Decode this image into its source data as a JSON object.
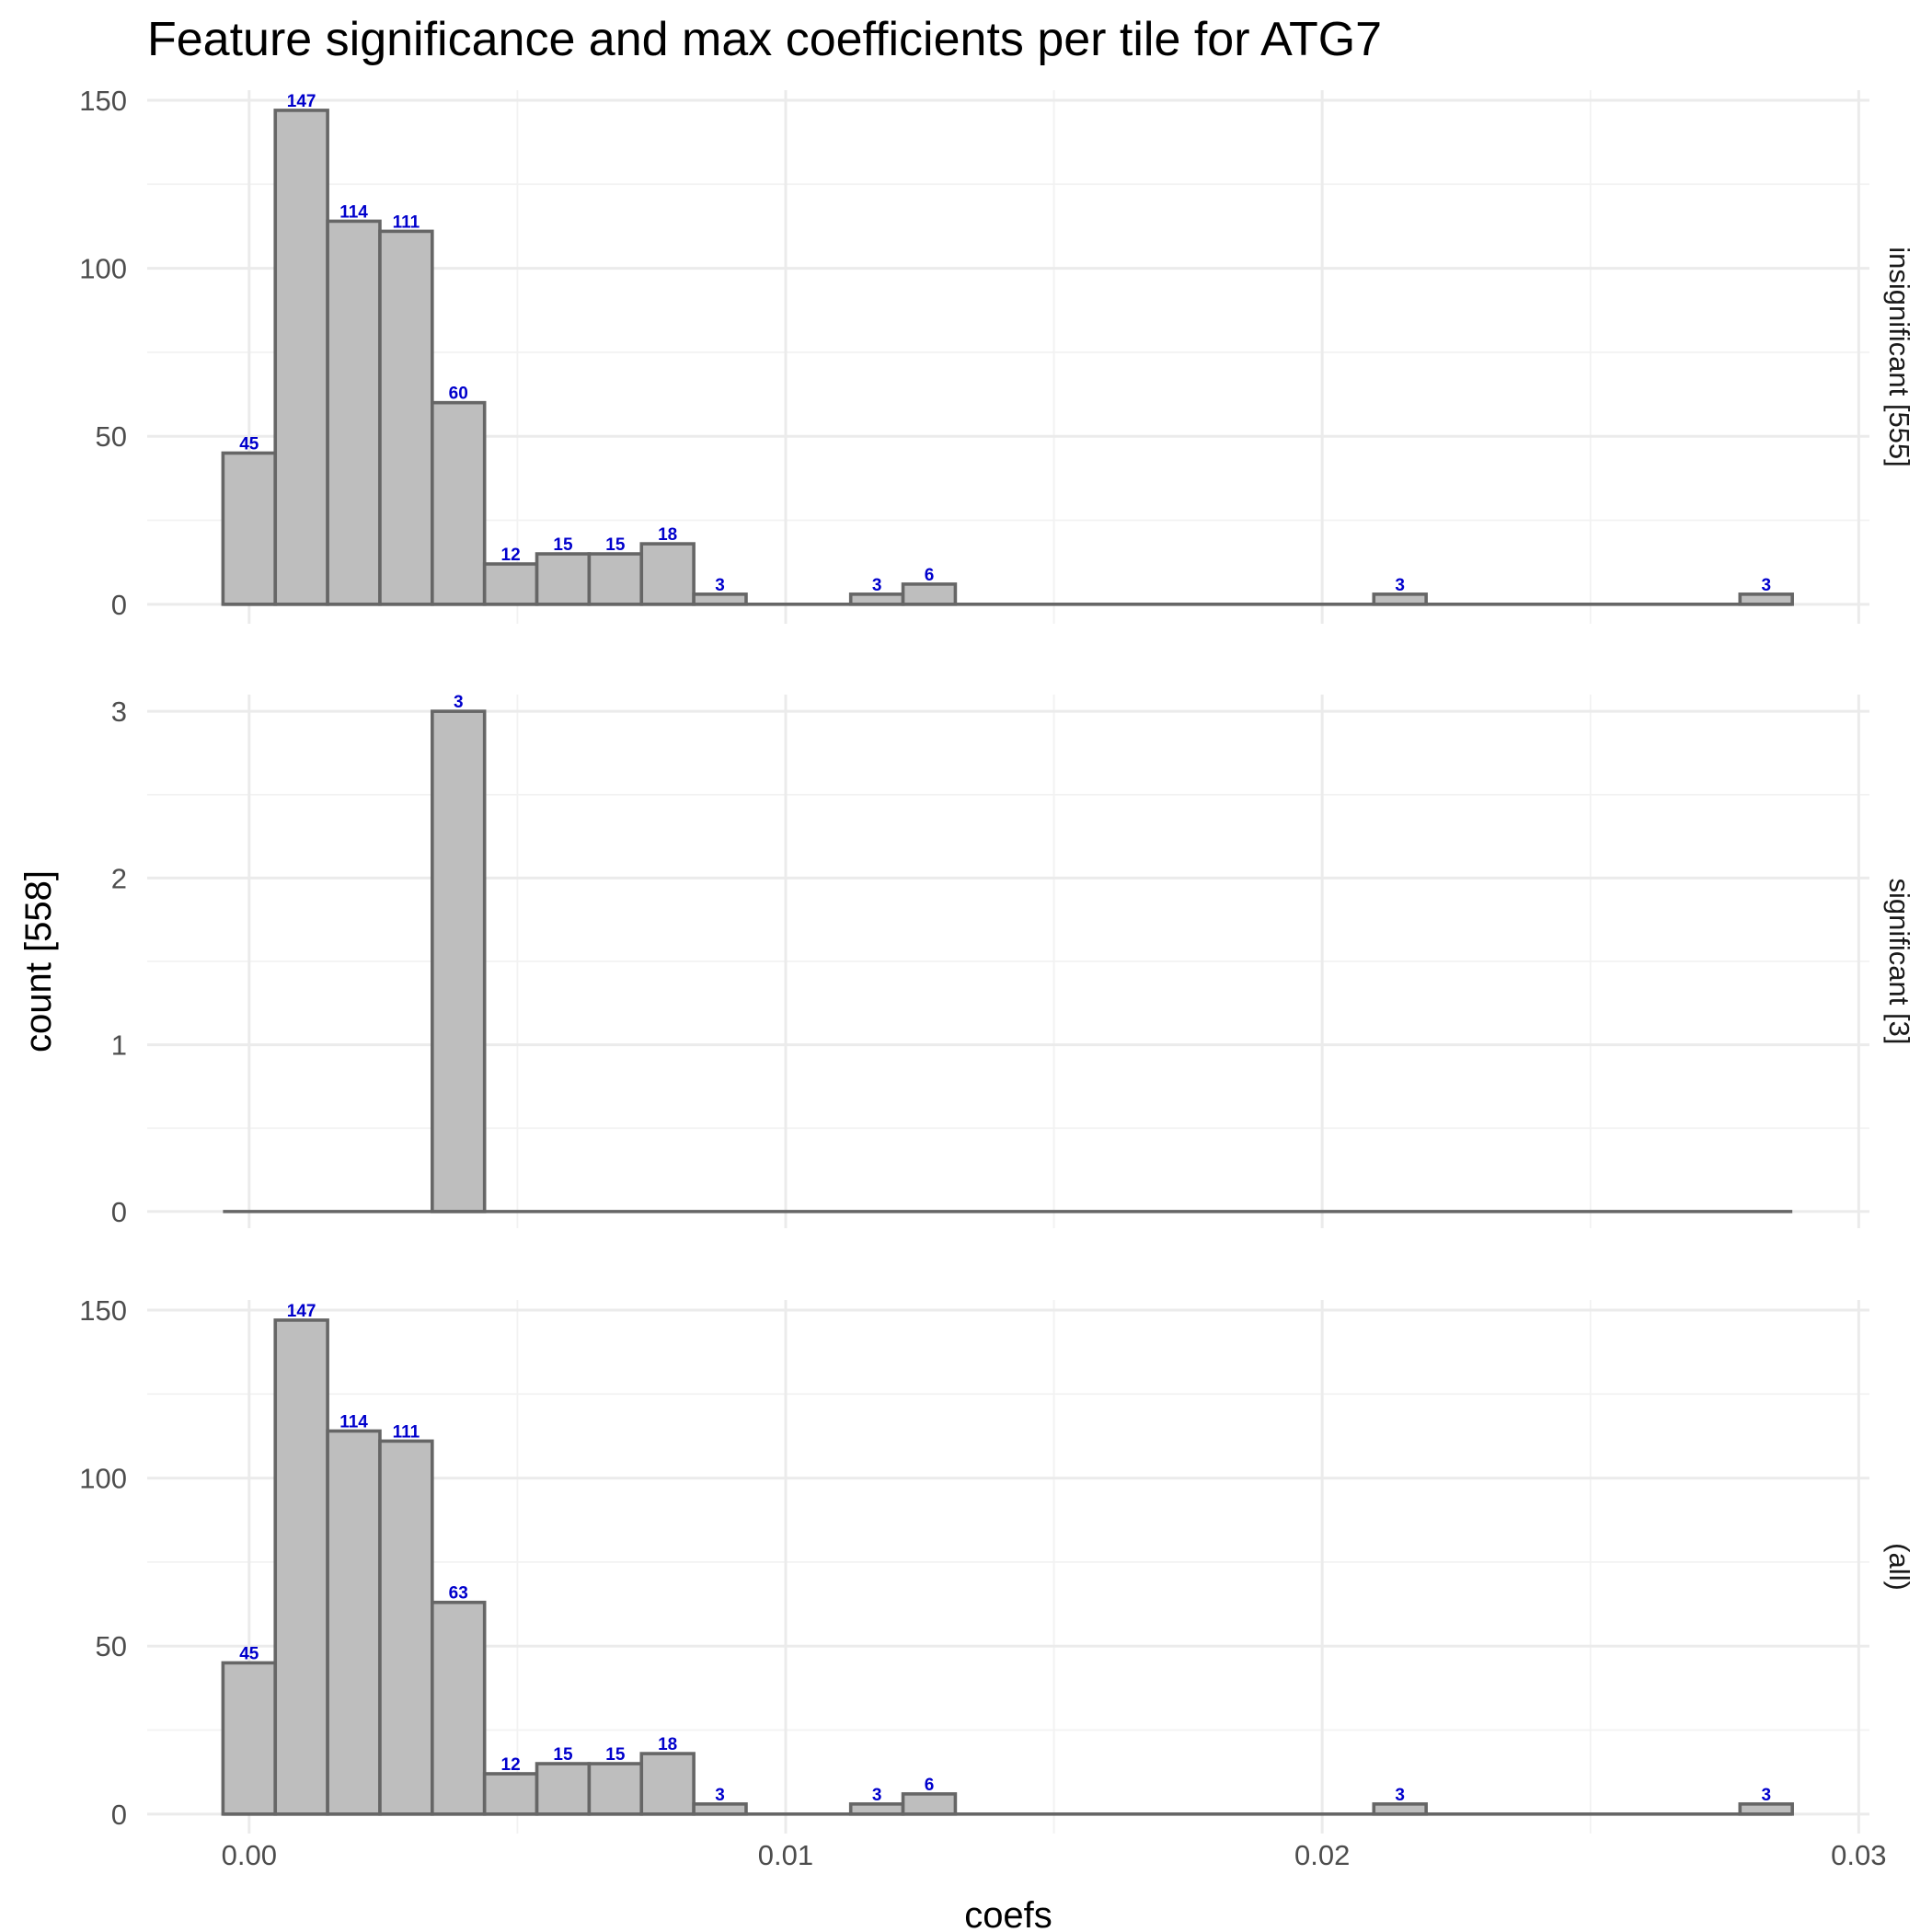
{
  "chart_data": {
    "type": "bar",
    "title": "Feature significance and max coefficients per tile for ATG7",
    "xlabel": "coefs",
    "ylabel": "count [558]",
    "xlim": [
      -0.0019,
      0.0302
    ],
    "x_ticks": [
      {
        "value": 0.0,
        "label": "0.00"
      },
      {
        "value": 0.01,
        "label": "0.01"
      },
      {
        "value": 0.02,
        "label": "0.02"
      },
      {
        "value": 0.03,
        "label": "0.03"
      }
    ],
    "bin_width": 0.000975,
    "bin_centers": [
      0.0,
      0.000975,
      0.00195,
      0.002925,
      0.0039,
      0.004875,
      0.00585,
      0.006825,
      0.0078,
      0.008775,
      0.00975,
      0.010725,
      0.0117,
      0.012675,
      0.01365,
      0.014625,
      0.0156,
      0.016575,
      0.01755,
      0.018525,
      0.0195,
      0.020475,
      0.02145,
      0.022425,
      0.0234,
      0.024375,
      0.02535,
      0.026325,
      0.0273,
      0.028275
    ],
    "panels": [
      {
        "strip_label": "insignificant [555]",
        "ylim": [
          -5.8,
          153
        ],
        "y_ticks": [
          0,
          50,
          100,
          150
        ],
        "y_ticks_minor": [
          25,
          75,
          125
        ],
        "counts": [
          45,
          147,
          114,
          111,
          60,
          12,
          15,
          15,
          18,
          3,
          0,
          0,
          3,
          6,
          0,
          0,
          0,
          0,
          0,
          0,
          0,
          0,
          3,
          0,
          0,
          0,
          0,
          0,
          0,
          3
        ]
      },
      {
        "strip_label": "significant [3]",
        "ylim": [
          -0.1,
          3.1
        ],
        "y_ticks": [
          0,
          1,
          2,
          3
        ],
        "y_ticks_minor": [
          0.5,
          1.5,
          2.5
        ],
        "counts": [
          0,
          0,
          0,
          0,
          3,
          0,
          0,
          0,
          0,
          0,
          0,
          0,
          0,
          0,
          0,
          0,
          0,
          0,
          0,
          0,
          0,
          0,
          0,
          0,
          0,
          0,
          0,
          0,
          0,
          0
        ]
      },
      {
        "strip_label": "(all)",
        "ylim": [
          -5.8,
          153
        ],
        "y_ticks": [
          0,
          50,
          100,
          150
        ],
        "y_ticks_minor": [
          25,
          75,
          125
        ],
        "counts": [
          45,
          147,
          114,
          111,
          63,
          12,
          15,
          15,
          18,
          3,
          0,
          0,
          3,
          6,
          0,
          0,
          0,
          0,
          0,
          0,
          0,
          0,
          3,
          0,
          0,
          0,
          0,
          0,
          0,
          3
        ]
      }
    ],
    "label_color": "#0000cc",
    "bar_fill": "#bebebe",
    "bar_outline": "#666666",
    "grid": true,
    "legend": "none"
  }
}
